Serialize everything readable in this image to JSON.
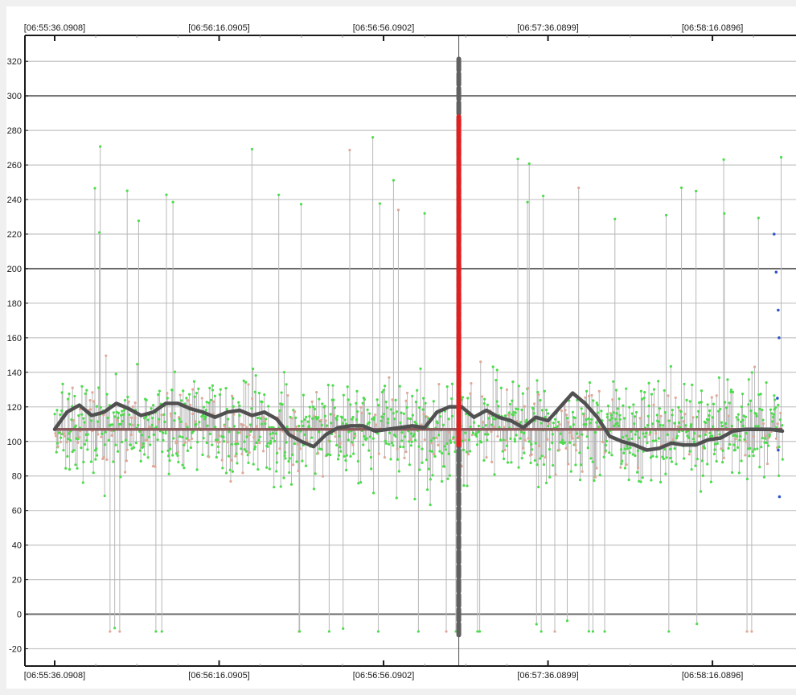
{
  "chart_data": {
    "type": "scatter",
    "title": "",
    "xlabel": "",
    "ylabel": "",
    "x_tick_labels": [
      "[06:55:36.0908]",
      "[06:56:16.0905]",
      "[06:56:56.0902]",
      "[06:57:36.0899]",
      "[06:58:16.0896]"
    ],
    "x_tick_labels_bottom": [
      "[06:55:36.0908]",
      "[06:56:16.0905]",
      "[06:56:56.0902]",
      "[06:57:36.0899]",
      "[06:58:16.0896]"
    ],
    "y_ticks": [
      -20,
      0,
      20,
      40,
      60,
      80,
      100,
      120,
      140,
      160,
      180,
      200,
      220,
      240,
      260,
      280,
      300,
      320
    ],
    "ylim": [
      -30,
      335
    ],
    "x_range_seconds": [
      0,
      177
    ],
    "major_gridlines": [
      0,
      200,
      300
    ],
    "grid": true,
    "series": [
      {
        "color": "#b8b8b8",
        "samples_shown": "dense vertical stems from each sample to the mean level",
        "value_range": [
          -10,
          322
        ]
      },
      {
        "color": "#4cdc4c",
        "samples_shown": "dots at sample values"
      },
      {
        "color": "#e0a898",
        "samples_shown": "dots at sample values"
      },
      {
        "color": "#3355cc",
        "samples_shown": "few dots near end",
        "points_t_v": [
          [
            175,
            220
          ],
          [
            175.5,
            198
          ],
          [
            176,
            176
          ],
          [
            176.2,
            160
          ],
          [
            175.8,
            125
          ],
          [
            176,
            95
          ],
          [
            176.3,
            68
          ]
        ]
      },
      {
        "color": "#505050",
        "t": [
          0,
          3,
          6,
          9,
          12,
          15,
          18,
          21,
          24,
          27,
          30,
          33,
          36,
          39,
          42,
          45,
          48,
          51,
          54,
          57,
          60,
          63,
          66,
          69,
          72,
          75,
          78,
          81,
          84,
          87,
          90,
          93,
          96,
          99,
          102,
          105,
          108,
          111,
          114,
          117,
          120,
          123,
          126,
          129,
          132,
          135,
          138,
          141,
          144,
          147,
          150,
          153,
          156,
          159,
          162,
          165,
          168,
          171,
          174,
          177
        ],
        "values": [
          107,
          117,
          121,
          115,
          117,
          122,
          119,
          115,
          117,
          122,
          122,
          119,
          117,
          114,
          117,
          118,
          115,
          117,
          113,
          104,
          100,
          97,
          104,
          108,
          109,
          109,
          106,
          107,
          108,
          109,
          108,
          117,
          120,
          120,
          114,
          118,
          114,
          112,
          108,
          114,
          112,
          120,
          128,
          122,
          114,
          103,
          100,
          98,
          95,
          96,
          99,
          98,
          98,
          101,
          102,
          106,
          107,
          107,
          107,
          106
        ]
      },
      {
        "color": "#8b5a5a",
        "level": 107
      }
    ],
    "cursor": {
      "t": 98.3,
      "outer_segment_color": "#606060",
      "inner_segment_color": "#e02020",
      "outer_range": [
        -12,
        322
      ],
      "inner_range": [
        98,
        288
      ]
    }
  }
}
